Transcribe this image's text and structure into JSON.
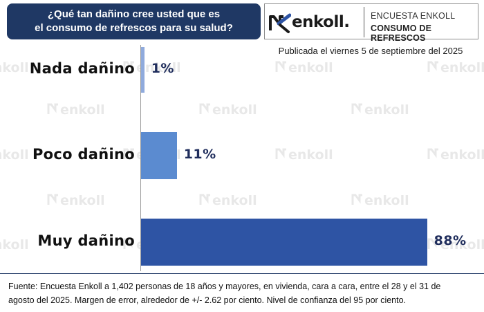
{
  "header": {
    "title_line1": "¿Qué tan dañino cree usted que es",
    "title_line2": "el consumo de refrescos para su salud?"
  },
  "brand": {
    "logo_text": "enkoll.",
    "line1": "ENCUESTA ENKOLL",
    "line2": "CONSUMO DE REFRESCOS",
    "watermark_text": "enkoll"
  },
  "published": "Publicada el viernes 5 de septiembre del 2025",
  "chart_data": {
    "type": "bar",
    "orientation": "horizontal",
    "categories": [
      "Nada dañino",
      "Poco dañino",
      "Muy dañino"
    ],
    "values": [
      1,
      11,
      88
    ],
    "value_labels": [
      "1%",
      "11%",
      "88%"
    ],
    "colors": [
      "#8faadc",
      "#5b8bd0",
      "#2e54a4"
    ],
    "xlim": [
      0,
      100
    ],
    "grid": false,
    "legend": "none"
  },
  "footer": {
    "line1": "Fuente: Encuesta Enkoll a 1,402 personas de 18 años y mayores, en vivienda, cara a cara, entre el 28 y el 31 de",
    "line2": "agosto del 2025. Margen de error, alrededor de +/- 2.62 por ciento. Nivel de confianza del 95 por ciento."
  },
  "colors": {
    "title_bg": "#1f3864",
    "value_text": "#1f2d5c"
  }
}
